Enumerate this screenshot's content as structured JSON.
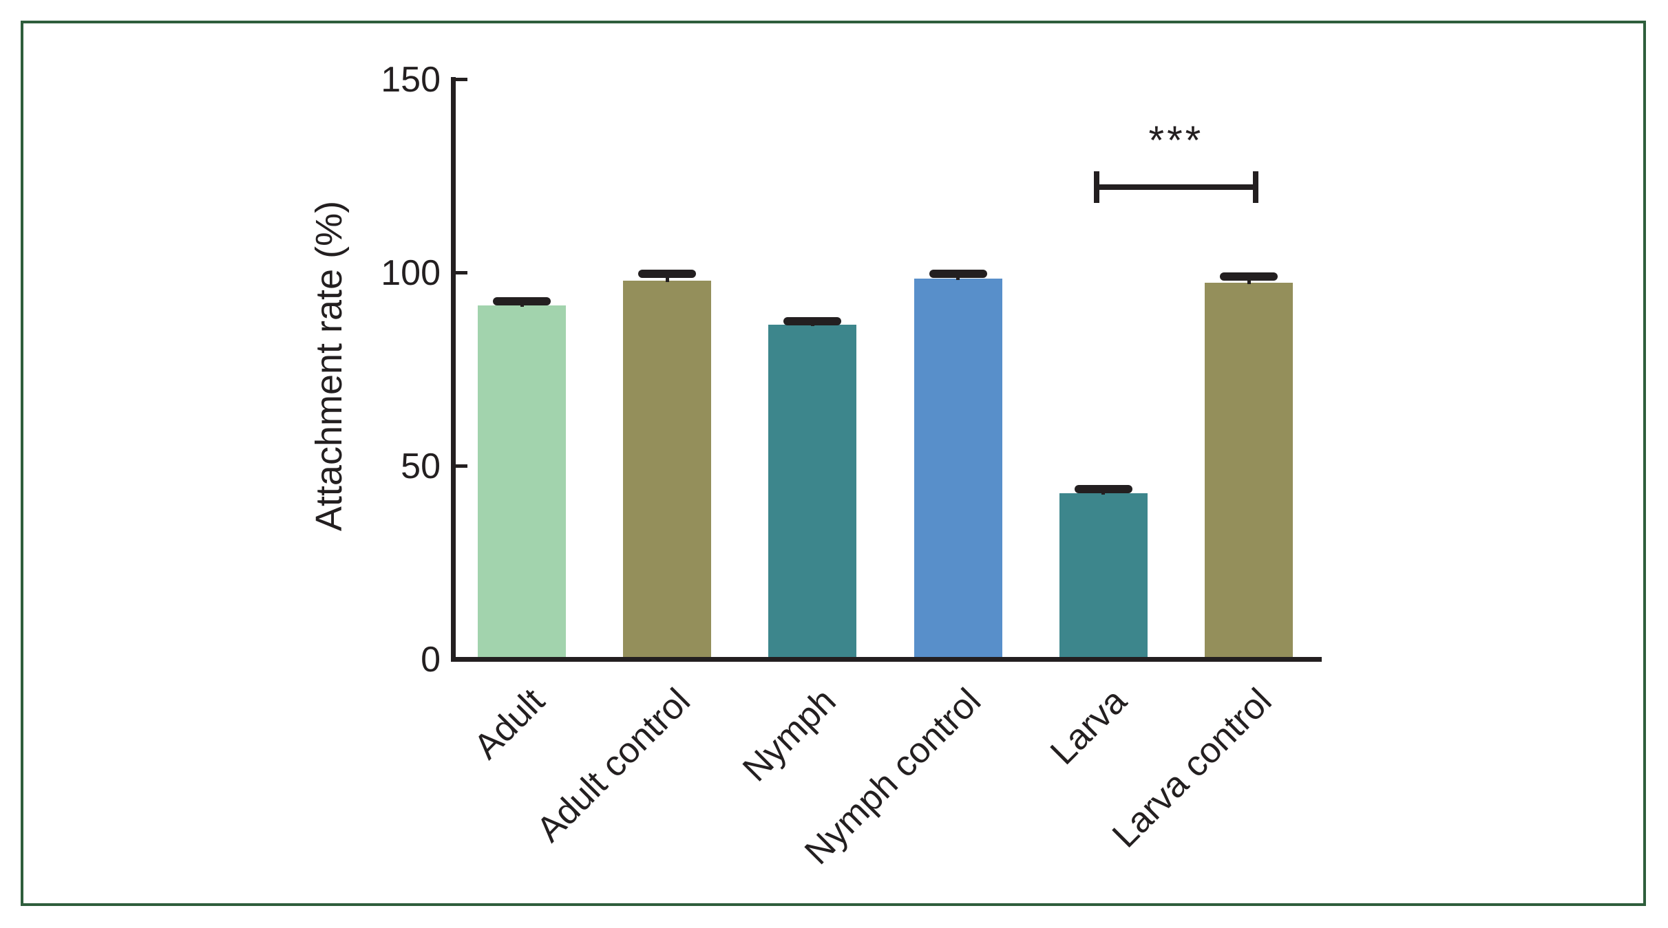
{
  "figure": {
    "background_color": "#ffffff",
    "frame_color": "#2e5e3c",
    "ink_color": "#231f20"
  },
  "chart_data": {
    "type": "bar",
    "title": "",
    "xlabel": "",
    "ylabel": "Attachment rate (%)",
    "ylim": [
      0,
      150
    ],
    "yticks": [
      0,
      50,
      100,
      150
    ],
    "grid": false,
    "legend": "none",
    "categories": [
      "Adult",
      "Adult control",
      "Nymph",
      "Nymph control",
      "Larva",
      "Larva control"
    ],
    "values": [
      91.5,
      98,
      86.5,
      98.5,
      43,
      97.5
    ],
    "errors_upper": [
      1.2,
      1.7,
      1.0,
      1.3,
      1.1,
      1.6
    ],
    "bar_colors": [
      "#a2d3ad",
      "#948f5b",
      "#3d868c",
      "#588fca",
      "#3d868c",
      "#948f5b"
    ],
    "significance": {
      "label": "***",
      "between": [
        "Larva",
        "Larva control"
      ]
    }
  }
}
